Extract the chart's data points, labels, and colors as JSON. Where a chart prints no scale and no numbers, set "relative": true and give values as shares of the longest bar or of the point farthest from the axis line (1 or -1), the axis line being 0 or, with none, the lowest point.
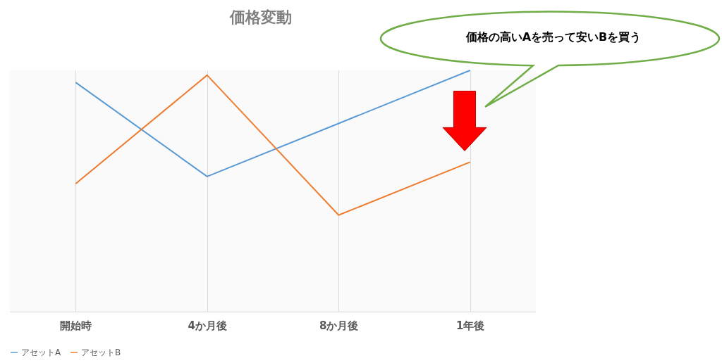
{
  "chart_data": {
    "type": "line",
    "title": "価格変動",
    "categories": [
      "開始時",
      "4か月後",
      "8か月後",
      "1年後"
    ],
    "relative": true,
    "series": [
      {
        "name": "アセットA",
        "color": "#5b9bd5",
        "values": [
          0.95,
          0.56,
          0.78,
          1.0
        ]
      },
      {
        "name": "アセットB",
        "color": "#ed7d31",
        "values": [
          0.53,
          0.98,
          0.4,
          0.62
        ]
      }
    ],
    "annotations": [
      "価格の高いAを売って安いBを買う"
    ],
    "grid": "x",
    "legend": "bottom",
    "marker": "none",
    "line_style": "solid"
  }
}
